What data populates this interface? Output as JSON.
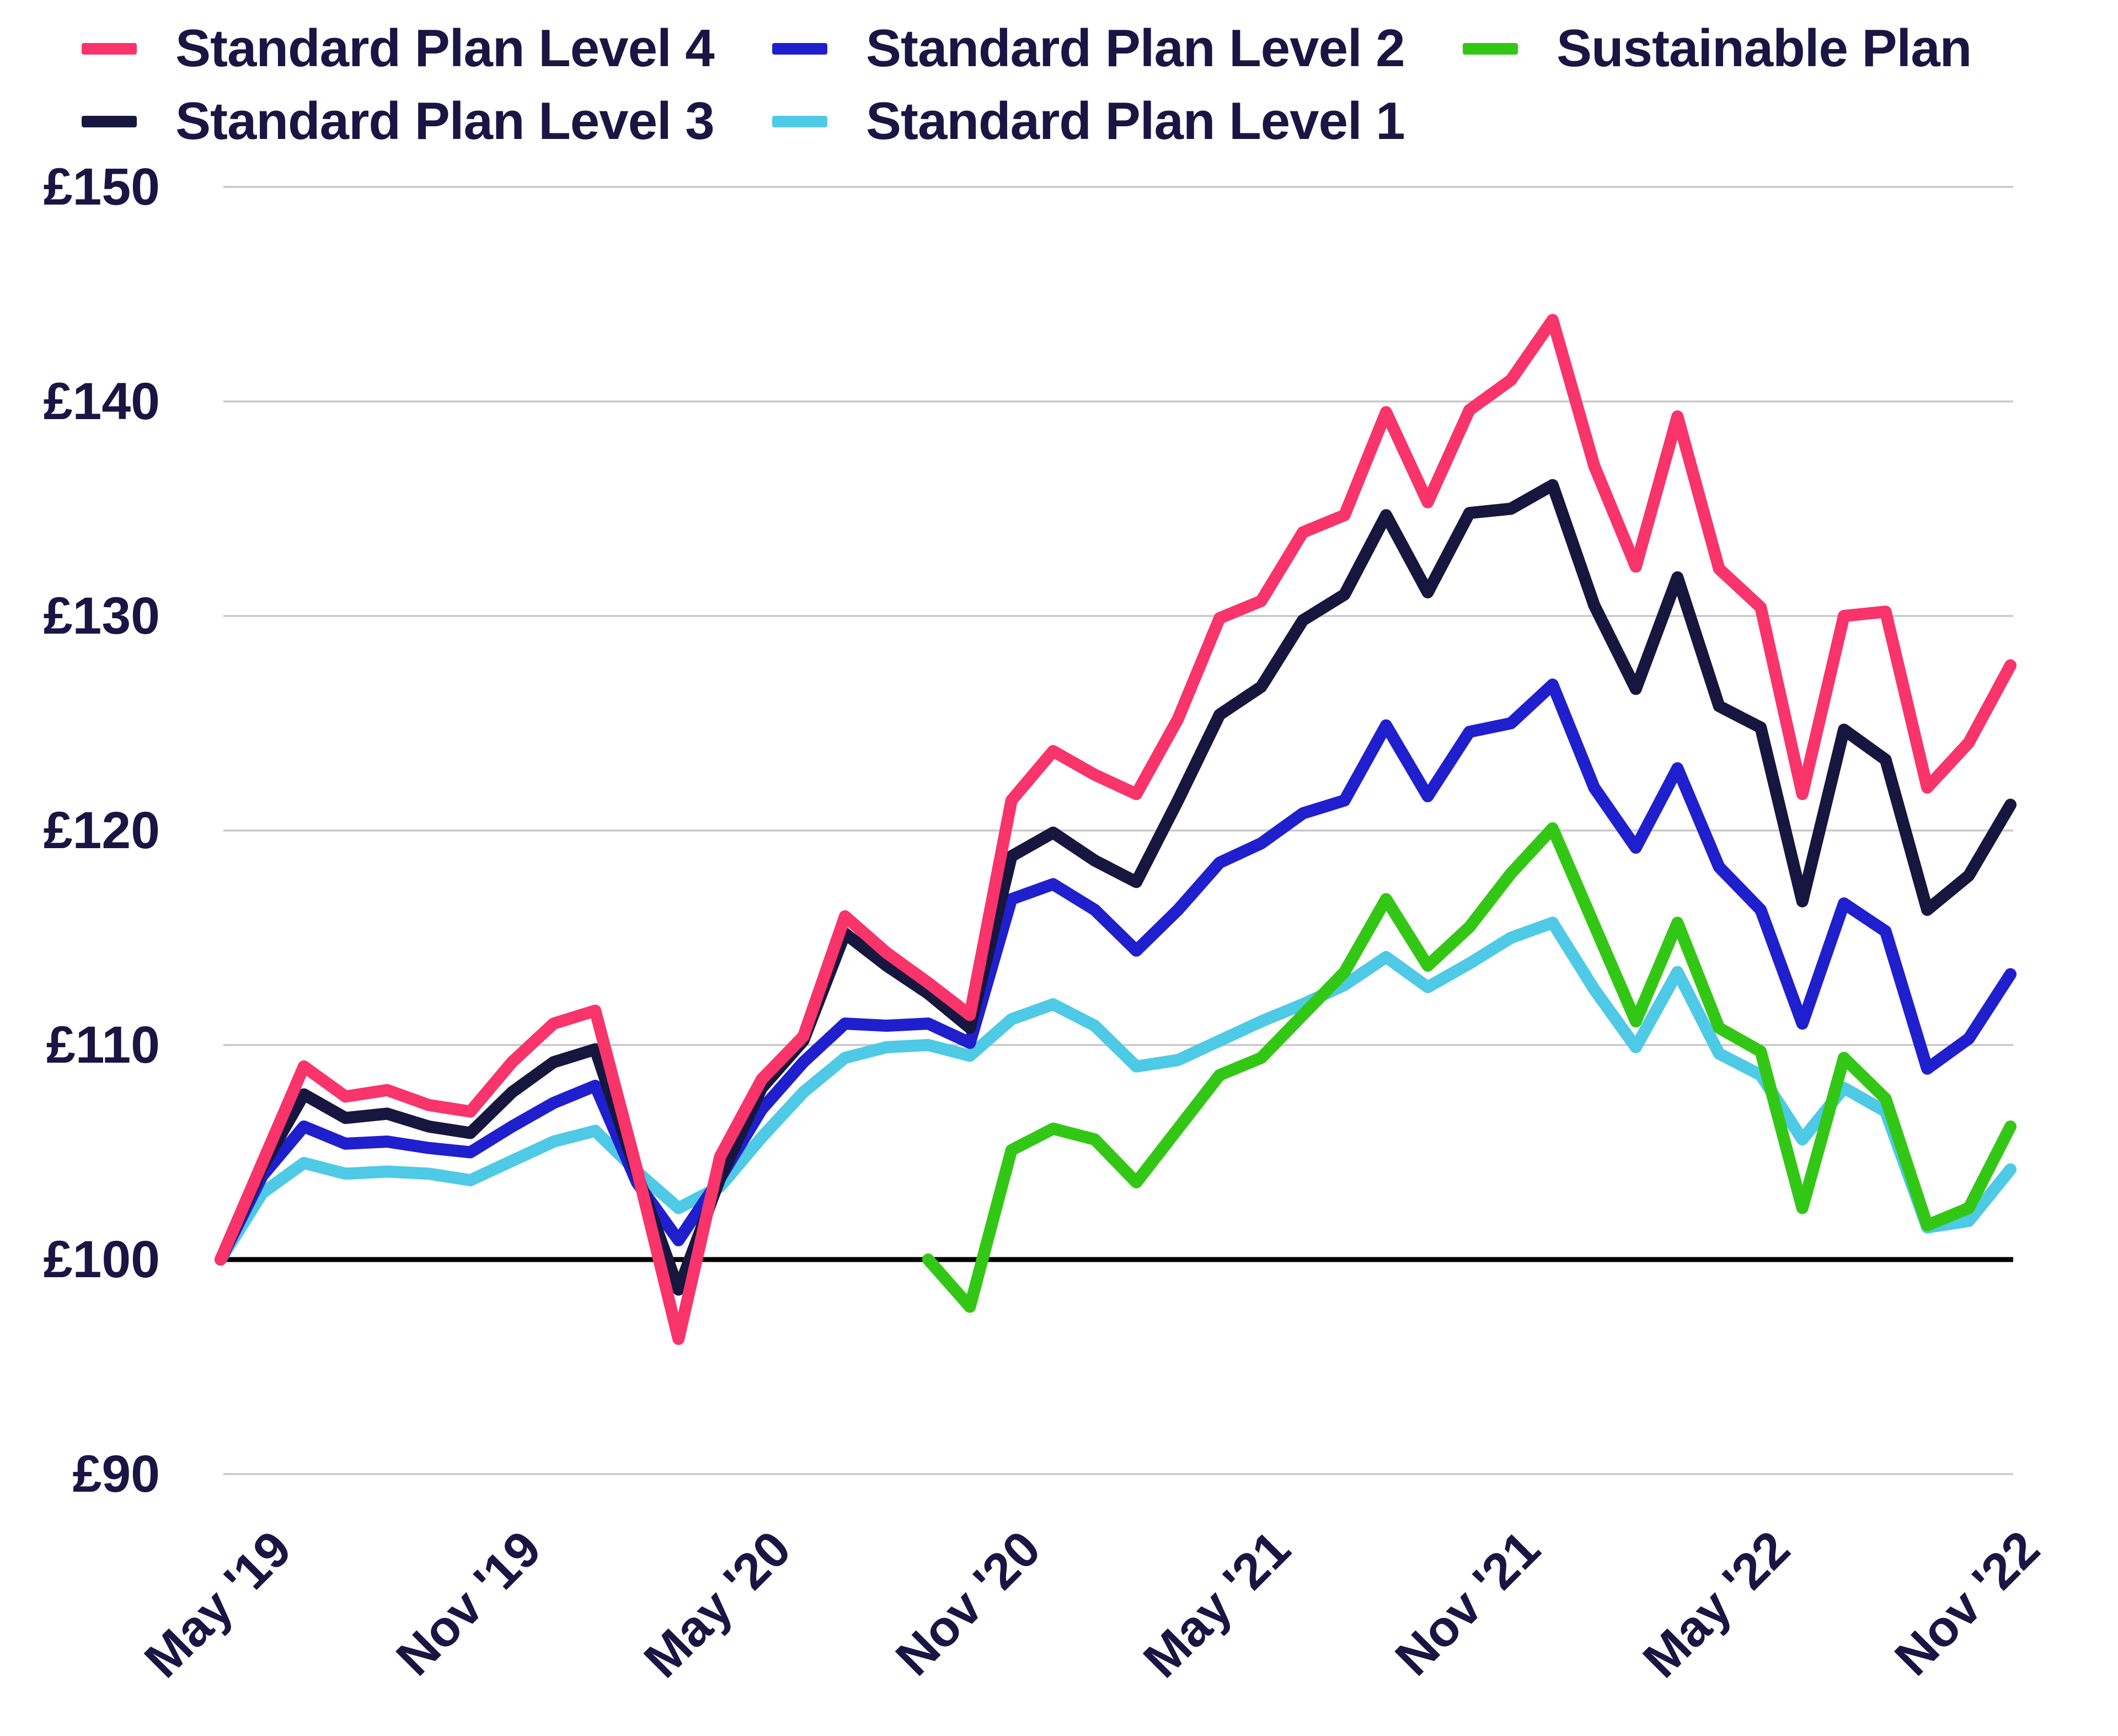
{
  "legend": {
    "items": [
      {
        "label": "Standard Plan Level 4",
        "color": "#F8346B",
        "icon": "line-swatch"
      },
      {
        "label": "Standard Plan Level 2",
        "color": "#1F1FCE",
        "icon": "line-swatch"
      },
      {
        "label": "Sustainable Plan",
        "color": "#33C715",
        "icon": "line-swatch"
      },
      {
        "label": "Standard Plan Level 3",
        "color": "#16163F",
        "icon": "line-swatch"
      },
      {
        "label": "Standard Plan Level 1",
        "color": "#4EC9E6",
        "icon": "line-swatch"
      }
    ]
  },
  "chart_data": {
    "type": "line",
    "currency": "GBP",
    "base_value": 100,
    "x_interval": "monthly",
    "x_start": "Apr 2019",
    "x_end": "Nov 2022",
    "xticks": {
      "labels": [
        "May '19",
        "Nov '19",
        "May '20",
        "Nov '20",
        "May '21",
        "Nov '21",
        "May '22",
        "Nov '22"
      ],
      "point_indices": [
        1,
        7,
        13,
        19,
        25,
        31,
        37,
        43
      ]
    },
    "yticks": {
      "labels": [
        "£90",
        "£100",
        "£110",
        "£120",
        "£130",
        "£140",
        "£150"
      ],
      "values": [
        90,
        100,
        110,
        120,
        130,
        140,
        150
      ],
      "baseline_value": 100
    },
    "ylim": [
      90,
      150
    ],
    "grid": true,
    "legend_position": "top",
    "gridline_color": "#C8C8C8",
    "baseline_color": "#000000",
    "axis_text_color": "#1A1543",
    "series": [
      {
        "name": "Standard Plan Level 4",
        "color": "#F8346B",
        "values": [
          100.0,
          104.5,
          109.0,
          107.6,
          107.9,
          107.2,
          106.9,
          109.2,
          111.0,
          111.6,
          104.2,
          96.3,
          104.8,
          108.4,
          110.4,
          116.0,
          114.3,
          112.9,
          111.4,
          121.4,
          123.7,
          122.6,
          121.7,
          125.2,
          129.9,
          130.7,
          133.9,
          134.7,
          139.5,
          135.3,
          139.6,
          141.0,
          143.8,
          137.0,
          132.3,
          139.3,
          132.2,
          130.4,
          121.7,
          130.0,
          130.2,
          122.0,
          124.1,
          127.7
        ]
      },
      {
        "name": "Standard Plan Level 3",
        "color": "#16163F",
        "values": [
          100.0,
          104.3,
          107.7,
          106.6,
          106.8,
          106.2,
          105.9,
          107.8,
          109.2,
          109.8,
          104.0,
          98.6,
          103.8,
          108.0,
          110.2,
          115.2,
          113.7,
          112.4,
          110.8,
          118.8,
          119.9,
          118.6,
          117.6,
          121.4,
          125.4,
          126.7,
          129.8,
          131.0,
          134.7,
          131.1,
          134.8,
          135.0,
          136.1,
          130.5,
          126.6,
          131.8,
          125.8,
          124.8,
          116.7,
          124.7,
          123.3,
          116.3,
          117.9,
          121.2
        ]
      },
      {
        "name": "Standard Plan Level 2",
        "color": "#1F1FCE",
        "values": [
          100.0,
          103.9,
          106.2,
          105.4,
          105.5,
          105.2,
          105.0,
          106.2,
          107.3,
          108.1,
          103.6,
          100.9,
          103.8,
          107.0,
          109.2,
          111.0,
          110.9,
          111.0,
          110.1,
          116.8,
          117.5,
          116.3,
          114.4,
          116.3,
          118.5,
          119.4,
          120.8,
          121.4,
          124.9,
          121.6,
          124.6,
          125.0,
          126.8,
          122.0,
          119.2,
          122.9,
          118.3,
          116.3,
          111.0,
          116.6,
          115.3,
          108.9,
          110.3,
          113.3
        ]
      },
      {
        "name": "Standard Plan Level 1",
        "color": "#4EC9E6",
        "values": [
          100.0,
          103.1,
          104.5,
          104.0,
          104.1,
          104.0,
          103.7,
          104.6,
          105.5,
          106.0,
          104.1,
          102.4,
          103.4,
          105.7,
          107.8,
          109.4,
          109.9,
          110.0,
          109.5,
          111.2,
          111.9,
          110.9,
          109.0,
          109.3,
          110.2,
          111.1,
          111.9,
          112.8,
          114.1,
          112.7,
          113.8,
          115.0,
          115.7,
          112.6,
          109.9,
          113.4,
          109.6,
          108.6,
          105.6,
          108.0,
          106.9,
          101.5,
          101.8,
          104.2
        ]
      },
      {
        "name": "Sustainable Plan",
        "color": "#33C715",
        "values": [
          null,
          null,
          null,
          null,
          null,
          null,
          null,
          null,
          null,
          null,
          null,
          null,
          null,
          null,
          null,
          null,
          null,
          100.0,
          97.8,
          105.1,
          106.1,
          105.6,
          103.6,
          106.1,
          108.6,
          109.4,
          111.4,
          113.4,
          116.8,
          113.7,
          115.5,
          118.0,
          120.1,
          115.6,
          111.1,
          115.7,
          110.8,
          109.7,
          102.4,
          109.4,
          107.5,
          101.6,
          102.4,
          106.2
        ]
      }
    ]
  }
}
